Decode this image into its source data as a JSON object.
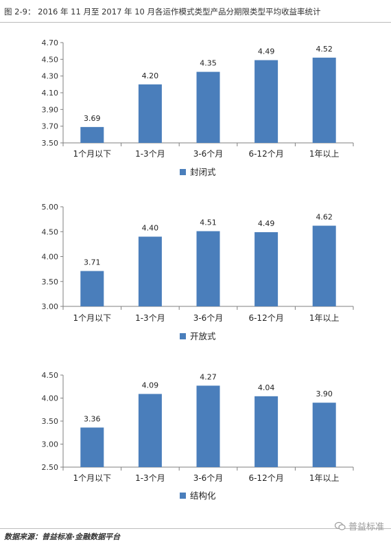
{
  "figure": {
    "title": "图 2-9：  2016 年 11 月至 2017 年 10 月各运作模式类型产品分期限类型平均收益率统计",
    "source": "数据来源：普益标准·金融数据平台",
    "watermark": "普益标准",
    "bar_color": "#4a7ebb"
  },
  "chart_data": [
    {
      "type": "bar",
      "categories": [
        "1个月以下",
        "1-3个月",
        "3-6个月",
        "6-12个月",
        "1年以上"
      ],
      "series": [
        {
          "name": "封闭式",
          "values": [
            3.69,
            4.2,
            4.35,
            4.49,
            4.52
          ]
        }
      ],
      "value_labels": [
        "3.69",
        "4.20",
        "4.35",
        "4.49",
        "4.52"
      ],
      "yticks": [
        "3.50",
        "3.70",
        "3.90",
        "4.10",
        "4.30",
        "4.50",
        "4.70"
      ],
      "ylim": [
        3.5,
        4.7
      ],
      "legend_position": "bottom",
      "grid": false
    },
    {
      "type": "bar",
      "categories": [
        "1个月以下",
        "1-3个月",
        "3-6个月",
        "6-12个月",
        "1年以上"
      ],
      "series": [
        {
          "name": "开放式",
          "values": [
            3.71,
            4.4,
            4.51,
            4.49,
            4.62
          ]
        }
      ],
      "value_labels": [
        "3.71",
        "4.40",
        "4.51",
        "4.49",
        "4.62"
      ],
      "yticks": [
        "3.00",
        "3.50",
        "4.00",
        "4.50",
        "5.00"
      ],
      "ylim": [
        3.0,
        5.0
      ],
      "legend_position": "bottom",
      "grid": false
    },
    {
      "type": "bar",
      "categories": [
        "1个月以下",
        "1-3个月",
        "3-6个月",
        "6-12个月",
        "1年以上"
      ],
      "series": [
        {
          "name": "结构化",
          "values": [
            3.36,
            4.09,
            4.27,
            4.04,
            3.9
          ]
        }
      ],
      "value_labels": [
        "3.36",
        "4.09",
        "4.27",
        "4.04",
        "3.90"
      ],
      "yticks": [
        "2.50",
        "3.00",
        "3.50",
        "4.00",
        "4.50"
      ],
      "ylim": [
        2.5,
        4.5
      ],
      "legend_position": "bottom",
      "grid": false
    }
  ]
}
